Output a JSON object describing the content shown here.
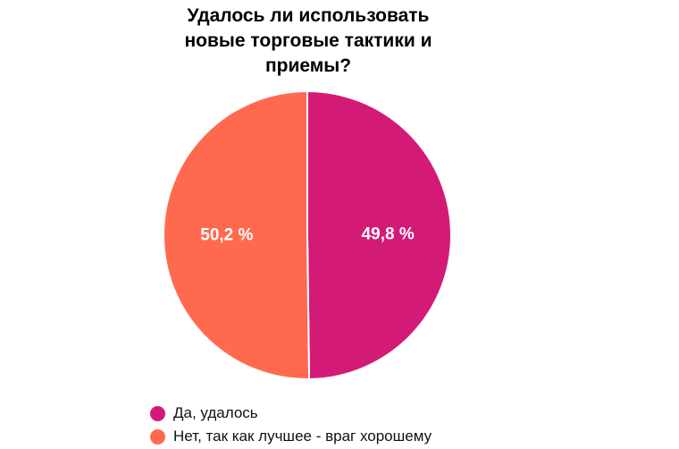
{
  "chart_data": {
    "type": "pie",
    "title_lines": [
      "Удалось ли использовать",
      "новые торговые тактики и",
      "приемы?"
    ],
    "slices": [
      {
        "label": "Да, удалось",
        "value": 49.8,
        "display": "49,8 %",
        "color": "#D31A77"
      },
      {
        "label": "Нет, так как лучшее - враг хорошему",
        "value": 50.2,
        "display": "50,2 %",
        "color": "#FF6A4F"
      }
    ],
    "legend_position": "bottom-left",
    "start_angle_deg": 0,
    "direction": "clockwise"
  }
}
